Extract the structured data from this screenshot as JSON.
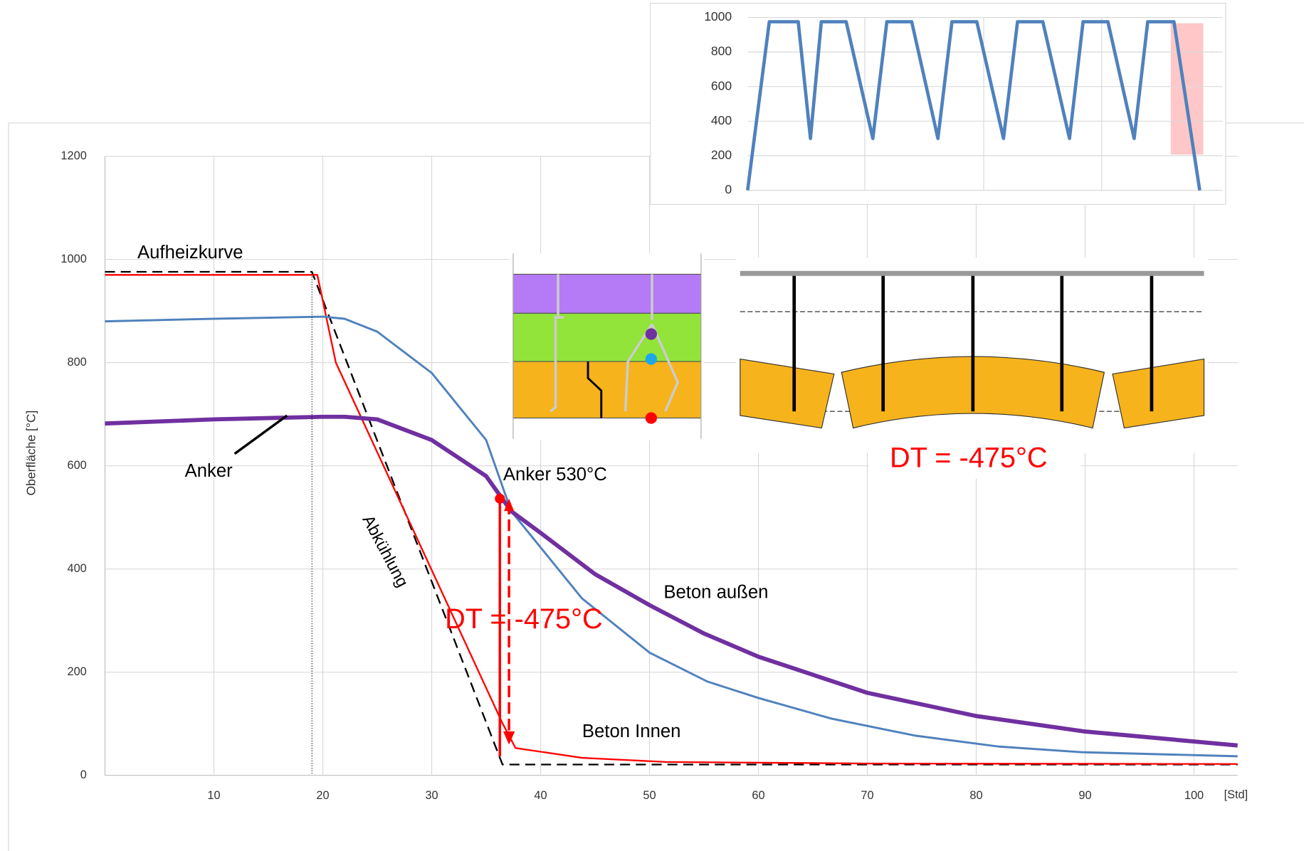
{
  "chart_data": [
    {
      "type": "line",
      "y_label": "Oberfläche [°C]",
      "x_label": "[Std]",
      "xlim": [
        0,
        104
      ],
      "ylim": [
        0,
        1200
      ],
      "xticks": [
        10,
        20,
        30,
        40,
        50,
        60,
        70,
        80,
        90,
        100
      ],
      "yticks": [
        0,
        200,
        400,
        600,
        800,
        1000,
        1200
      ],
      "grid": true,
      "series": [
        {
          "color": "#000000",
          "style": "dashed",
          "width": 2,
          "x": [
            0,
            19,
            36.5,
            104
          ],
          "values": [
            976,
            976,
            21,
            21
          ]
        },
        {
          "color": "#ff0000",
          "style": "solid",
          "width": 2,
          "x": [
            0,
            19.5,
            21.2,
            36.5,
            37.7,
            43.8,
            51.5,
            70,
            104
          ],
          "values": [
            970,
            970,
            800,
            101,
            53,
            34,
            26,
            23,
            22
          ]
        },
        {
          "color": "#4f81bd",
          "style": "solid",
          "width": 2.5,
          "x": [
            0,
            10,
            20,
            22,
            25,
            30,
            35,
            37.3,
            43.8,
            50,
            55.3,
            60,
            66.7,
            74.4,
            82,
            89.6,
            104
          ],
          "values": [
            880,
            885,
            889,
            885,
            860,
            780,
            650,
            512,
            343,
            238,
            182,
            150,
            110,
            77,
            56,
            45,
            37
          ]
        },
        {
          "color": "#7030a0",
          "style": "solid",
          "width": 5,
          "x": [
            0,
            10,
            20,
            22,
            25,
            30,
            35,
            37.3,
            40,
            45,
            50,
            55,
            60,
            70,
            80,
            90,
            104
          ],
          "values": [
            682,
            690,
            695,
            695,
            690,
            650,
            580,
            512,
            470,
            390,
            330,
            275,
            230,
            160,
            115,
            85,
            58
          ]
        }
      ],
      "annotations": [
        "Aufheizkurve",
        "Anker",
        "Anker 530°C",
        "Abkühlung",
        "Beton außen",
        "DT = -475°C",
        "Beton Innen",
        "DT = -475°C"
      ]
    },
    {
      "type": "line",
      "xlim": [
        0,
        105
      ],
      "ylim": [
        0,
        1000
      ],
      "yticks": [
        0,
        200,
        400,
        600,
        800,
        1000
      ],
      "grid": true,
      "series": [
        {
          "color": "#4f81bd",
          "style": "solid",
          "width": 4,
          "x": [
            0,
            4.8,
            11.2,
            13.9,
            16.3,
            21.8,
            27.7,
            30.8,
            36.3,
            42.1,
            45.2,
            50.7,
            56.6,
            59.7,
            65.3,
            71.2,
            74.2,
            79.7,
            85.5,
            88.5,
            94.3,
            100
          ],
          "values": [
            0,
            975,
            975,
            300,
            975,
            975,
            300,
            975,
            975,
            300,
            975,
            975,
            300,
            975,
            975,
            300,
            975,
            975,
            300,
            975,
            975,
            0
          ]
        }
      ]
    }
  ]
}
